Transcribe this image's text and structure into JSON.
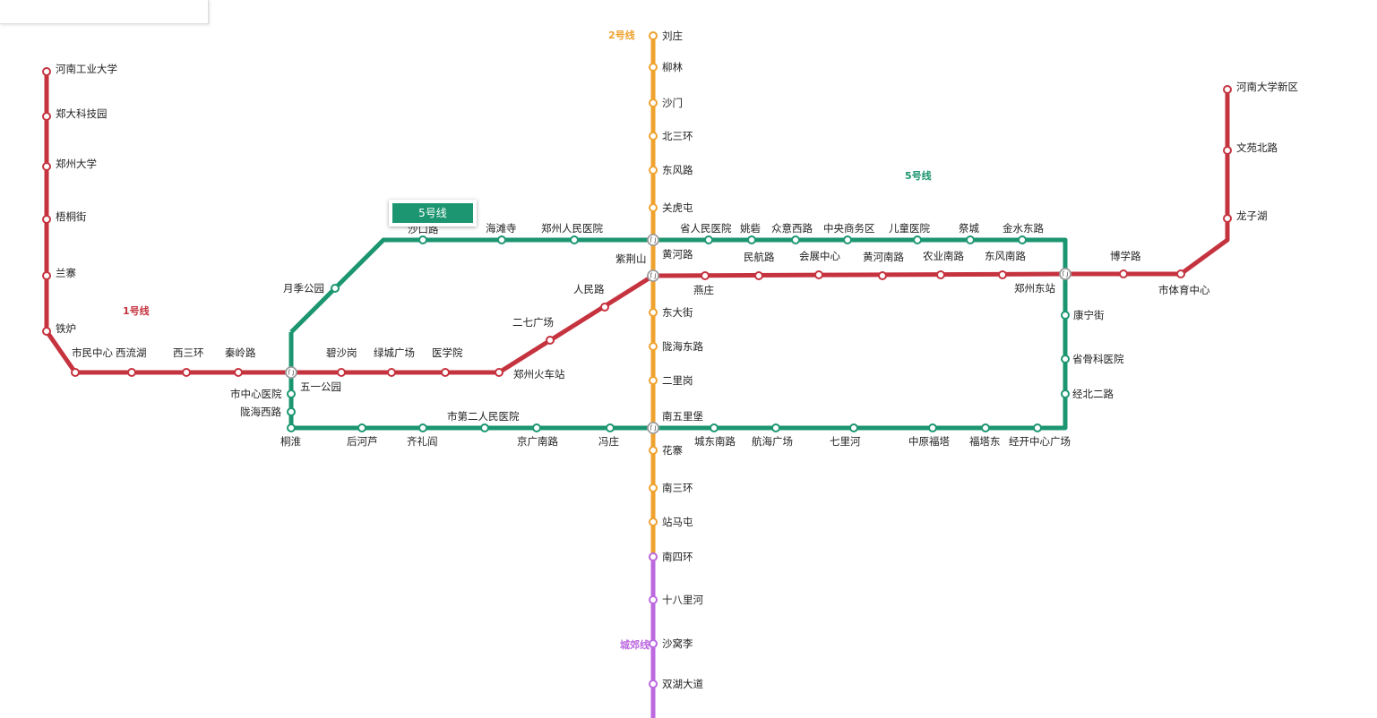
{
  "lines": [
    {
      "id": "line1",
      "name": "1号线",
      "color": "#c5333f",
      "stations": [
        "河南工业大学",
        "郑大科技园",
        "郑州大学",
        "梧桐街",
        "兰寨",
        "铁炉",
        "市民中心",
        "西流湖",
        "西三环",
        "秦岭路",
        "五一公园",
        "碧沙岗",
        "绿城广场",
        "医学院",
        "郑州火车站",
        "二七广场",
        "人民路",
        "紫荆山",
        "燕庄",
        "民航路",
        "会展中心",
        "黄河南路",
        "农业南路",
        "东风南路",
        "郑州东站",
        "博学路",
        "市体育中心",
        "龙子湖",
        "文苑北路",
        "河南大学新区"
      ]
    },
    {
      "id": "line2",
      "name": "2号线",
      "color": "#efa22e",
      "stations": [
        "刘庄",
        "柳林",
        "沙门",
        "北三环",
        "东风路",
        "关虎屯",
        "黄河路",
        "紫荆山",
        "东大街",
        "陇海东路",
        "二里岗",
        "南五里堡",
        "花寨",
        "南三环",
        "站马屯",
        "南四环"
      ]
    },
    {
      "id": "line5",
      "name": "5号线",
      "color": "#1c9670",
      "stations": [
        "沙口路",
        "海滩寺",
        "郑州人民医院",
        "黄河路",
        "省人民医院",
        "姚砦",
        "众意西路",
        "中央商务区",
        "儿童医院",
        "祭城",
        "金水东路",
        "郑州东站",
        "康宁街",
        "省骨科医院",
        "经北二路",
        "经开中心广场",
        "福塔东",
        "中原福塔",
        "七里河",
        "航海广场",
        "城东南路",
        "南五里堡",
        "冯庄",
        "京广南路",
        "市第二人民医院",
        "齐礼阎",
        "后河芦",
        "桐淮",
        "陇海西路",
        "市中心医院",
        "五一公园",
        "月季公园"
      ]
    },
    {
      "id": "chengjiao",
      "name": "城郊线",
      "color": "#bc69e0",
      "stations": [
        "南四环",
        "十八里河",
        "沙窝李",
        "双湖大道"
      ]
    }
  ],
  "tooltip": {
    "label": "5号线",
    "color": "#1c9670"
  }
}
